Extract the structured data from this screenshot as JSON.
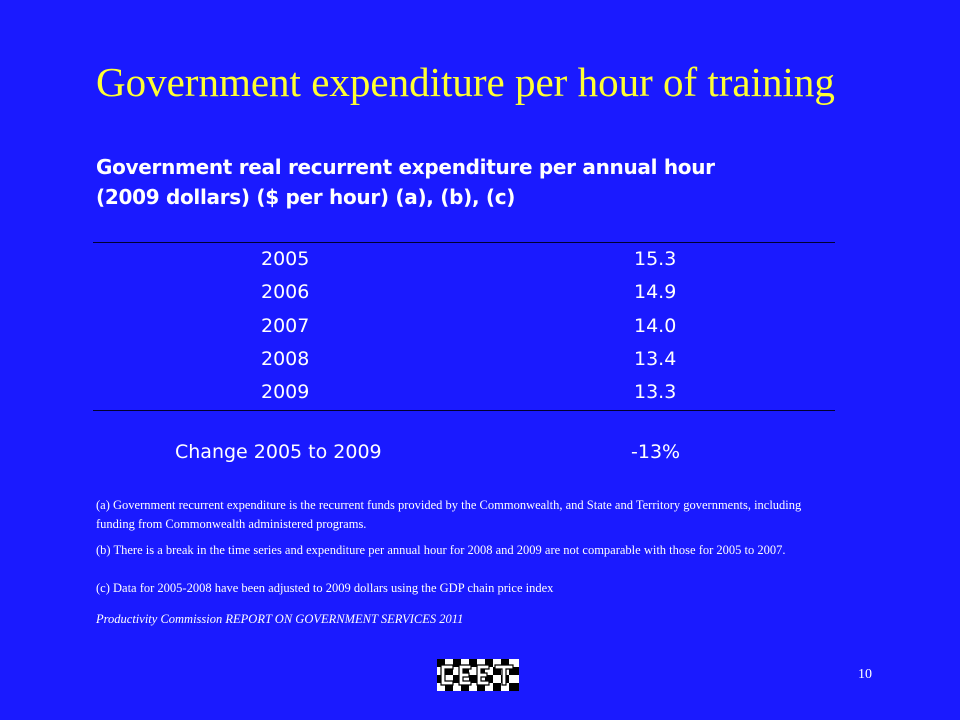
{
  "slide": {
    "title": "Government expenditure per hour of training",
    "subtitle_line1": "Government real recurrent expenditure per annual hour",
    "subtitle_line2": "(2009 dollars) ($ per hour) (a), (b), (c)",
    "table": {
      "rows": [
        {
          "year": "2005",
          "value": "15.3"
        },
        {
          "year": "2006",
          "value": "14.9"
        },
        {
          "year": "2007",
          "value": "14.0"
        },
        {
          "year": "2008",
          "value": "13.4"
        },
        {
          "year": "2009",
          "value": "13.3"
        }
      ],
      "change_label": "Change 2005 to 2009",
      "change_value": "-13%"
    },
    "notes": {
      "a": "(a) Government recurrent expenditure is  the recurrent funds provided by the Commonwealth, and State and Territory  governments, including funding from Commonwealth administered programs.",
      "b": "(b) There is a break in the time series and expenditure per annual hour for 2008 and 2009 are not comparable with those for 2005 to 2007.",
      "c": "(c) Data for 2005-2008 have been adjusted to 2009 dollars using the GDP chain price index",
      "source": "Productivity  Commission REPORT ON GOVERNMENT SERVICES 2011"
    },
    "page_number": "10",
    "logo": {
      "icon": "checkered-logo",
      "text": "CEET"
    },
    "colors": {
      "background": "#1a1aff",
      "title": "#ffff33",
      "text": "#ffffff"
    }
  }
}
